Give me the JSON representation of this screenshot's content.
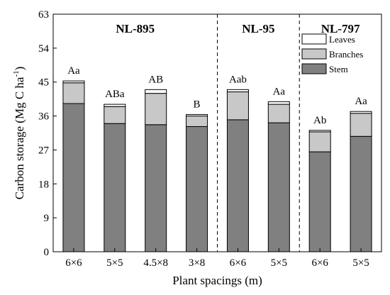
{
  "chart_data": {
    "type": "bar",
    "stacked": true,
    "xlabel": "Plant spacings (m)",
    "ylabel_main": "Carbon storage (Mg C ha",
    "ylabel_sup": "-1",
    "ylabel_close": ")",
    "ylim": [
      0,
      63
    ],
    "yticks": [
      "0",
      "9",
      "18",
      "27",
      "36",
      "45",
      "54",
      "63"
    ],
    "grid": false,
    "legend_position": "top-right",
    "categories": [
      "6×6",
      "5×5",
      "4.5×8",
      "3×8",
      "6×6",
      "5×5",
      "6×6",
      "5×5"
    ],
    "groups": [
      {
        "name": "NL-895",
        "start": 0,
        "count": 4
      },
      {
        "name": "NL-95",
        "start": 4,
        "count": 2
      },
      {
        "name": "NL-797",
        "start": 6,
        "count": 2
      }
    ],
    "series": [
      {
        "name": "Stem",
        "color": "#808080",
        "values": [
          39.3,
          34.0,
          33.7,
          33.2,
          35.0,
          34.2,
          26.5,
          30.6
        ]
      },
      {
        "name": "Branches",
        "color": "#c8c8c8",
        "values": [
          5.5,
          4.5,
          8.3,
          2.8,
          7.4,
          4.9,
          5.3,
          6.1
        ]
      },
      {
        "name": "Leaves",
        "color": "#ffffff",
        "values": [
          0.5,
          0.6,
          1.0,
          0.4,
          0.6,
          0.7,
          0.4,
          0.5
        ]
      }
    ],
    "significance_labels": [
      "Aa",
      "ABa",
      "AB",
      "B",
      "Aab",
      "Aa",
      "Ab",
      "Aa"
    ]
  }
}
